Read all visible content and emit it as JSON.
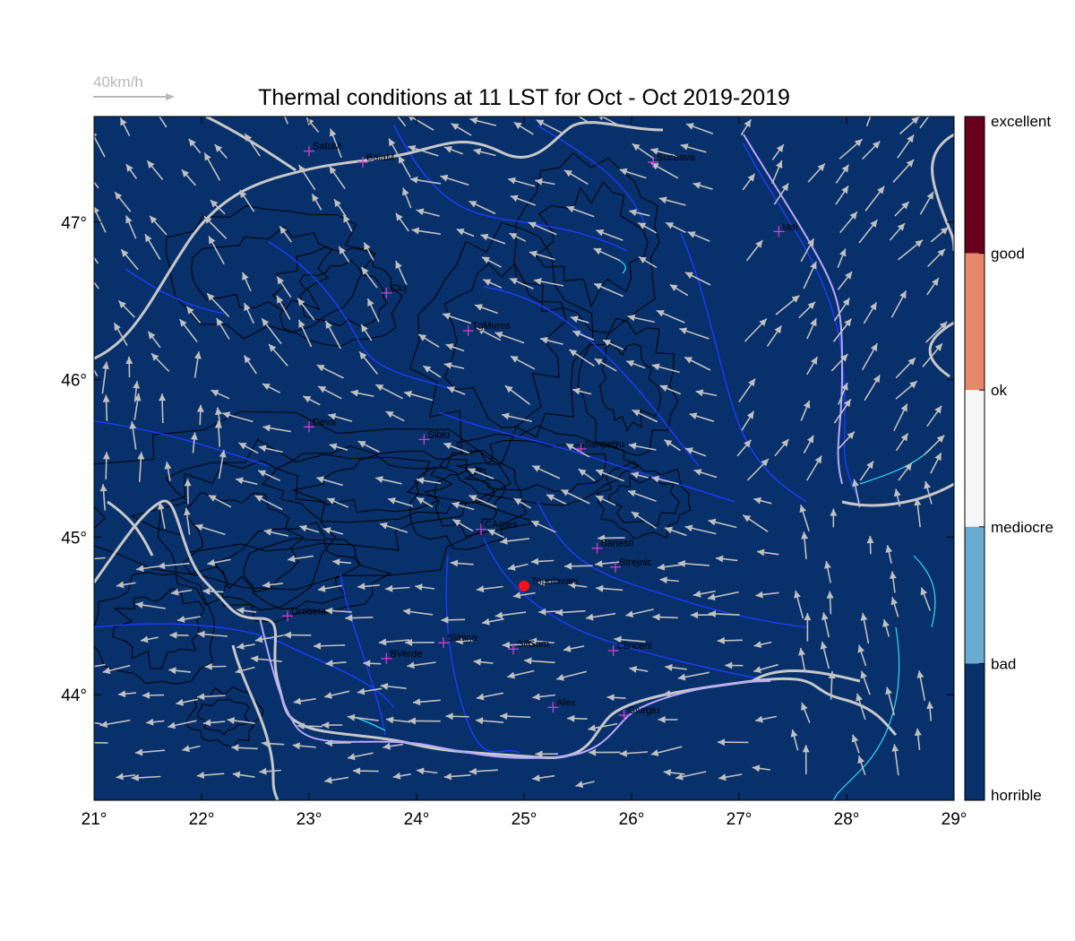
{
  "title": "Thermal conditions at 11 LST for Oct - Oct  2019-2019",
  "wind_reference": {
    "label": "40km/h",
    "color": "#b8b8b8"
  },
  "map": {
    "lon_range": [
      21,
      29
    ],
    "lat_range": [
      43.33,
      47.67
    ],
    "background_color": "#08306b",
    "x_ticks": [
      "21°",
      "22°",
      "23°",
      "24°",
      "25°",
      "26°",
      "27°",
      "28°",
      "29°"
    ],
    "y_ticks": [
      "44°",
      "45°",
      "46°",
      "47°"
    ],
    "border_color": "#c8c8c8",
    "river_color": "#1e3cff",
    "lake_color": "#30e0ff",
    "contour_color": "#000000",
    "arrow_color": "#c0c0c0",
    "city_marker_color": "#d040d0"
  },
  "cities": [
    {
      "name": "SatuM",
      "lon": 23.0,
      "lat": 47.45
    },
    {
      "name": "BaiaM",
      "lon": 23.5,
      "lat": 47.38
    },
    {
      "name": "Suceava",
      "lon": 26.2,
      "lat": 47.38
    },
    {
      "name": "Iasi",
      "lon": 27.37,
      "lat": 46.94
    },
    {
      "name": "Cluj",
      "lon": 23.72,
      "lat": 46.55
    },
    {
      "name": "TgMures",
      "lon": 24.48,
      "lat": 46.31
    },
    {
      "name": "Deva",
      "lon": 23.0,
      "lat": 45.7
    },
    {
      "name": "Sibiu",
      "lon": 24.07,
      "lat": 45.62
    },
    {
      "name": "Sanpetru",
      "lon": 25.53,
      "lat": 45.56
    },
    {
      "name": "CArges",
      "lon": 24.6,
      "lat": 45.05
    },
    {
      "name": "Banesti",
      "lon": 25.68,
      "lat": 44.93
    },
    {
      "name": "Strejnic",
      "lon": 25.85,
      "lat": 44.81
    },
    {
      "name": "Drobeta",
      "lon": 22.8,
      "lat": 44.5
    },
    {
      "name": "Slatina",
      "lon": 24.25,
      "lat": 44.33
    },
    {
      "name": "SilGum",
      "lon": 24.9,
      "lat": 44.29
    },
    {
      "name": "Clinceni",
      "lon": 25.83,
      "lat": 44.28
    },
    {
      "name": "BVerde",
      "lon": 23.72,
      "lat": 44.23
    },
    {
      "name": "Alex",
      "lon": 25.27,
      "lat": 43.92
    },
    {
      "name": "Giurgiu",
      "lon": 25.93,
      "lat": 43.87
    }
  ],
  "site": {
    "name": "Topolovani",
    "lon": 25.0,
    "lat": 44.69,
    "color": "#ff1010"
  },
  "colorbar": {
    "levels": [
      {
        "label": "excellent",
        "color": "#67001f"
      },
      {
        "label": "good",
        "color": "#67001f"
      },
      {
        "label": "ok",
        "color": "#e6876a"
      },
      {
        "label": "mediocre",
        "color": "#f7f7f7"
      },
      {
        "label": "bad",
        "color": "#6aabd2"
      },
      {
        "label": "horrible",
        "color": "#08306b"
      }
    ]
  }
}
